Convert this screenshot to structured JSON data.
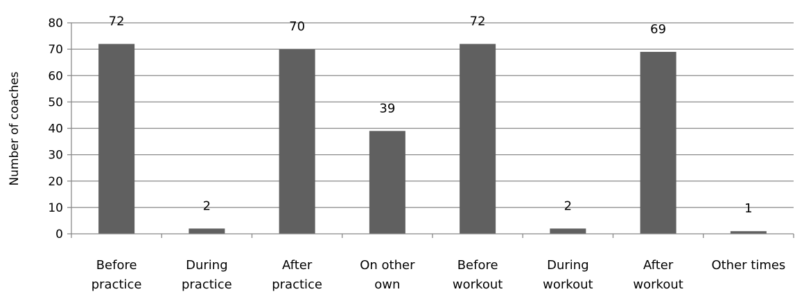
{
  "chart_data": {
    "type": "bar",
    "title": "",
    "xlabel": "",
    "ylabel": "Number of coaches",
    "ylim": [
      0,
      80
    ],
    "yticks": [
      0,
      10,
      20,
      30,
      40,
      50,
      60,
      70,
      80
    ],
    "grid": true,
    "categories": [
      [
        "Before",
        "practice"
      ],
      [
        "During",
        "practice"
      ],
      [
        "After",
        "practice"
      ],
      [
        "On other",
        "own"
      ],
      [
        "Before",
        "workout"
      ],
      [
        "During",
        "workout"
      ],
      [
        "After",
        "workout"
      ],
      [
        "Other times"
      ]
    ],
    "values": [
      72,
      2,
      70,
      39,
      72,
      2,
      69,
      1
    ],
    "bar_color": "#606060",
    "grid_color": "#888888",
    "axis_color": "#888888"
  }
}
